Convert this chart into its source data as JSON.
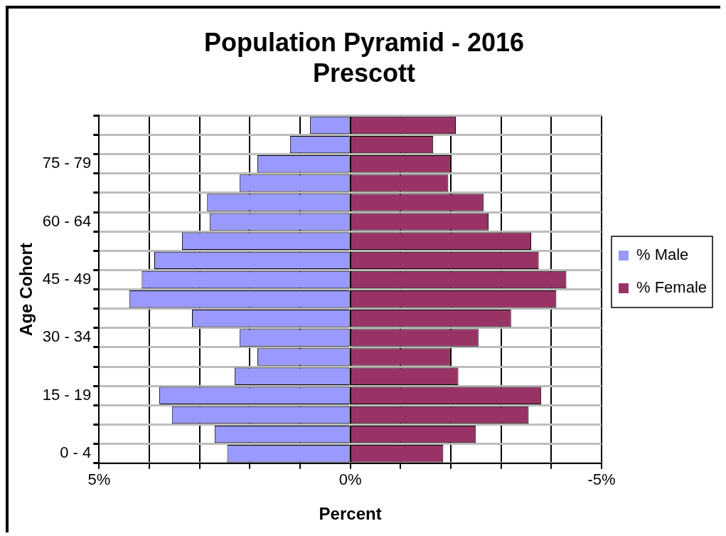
{
  "chart_data": {
    "type": "bar",
    "orientation": "horizontal",
    "stacked": true,
    "title": "Population Pyramid - 2016",
    "subtitle": "Prescott",
    "xlabel": "Percent",
    "ylabel": "Age Cohort",
    "categories": [
      null,
      null,
      "75 - 79",
      null,
      null,
      "60 - 64",
      null,
      null,
      "45 - 49",
      null,
      null,
      "30 - 34",
      null,
      null,
      "15 - 19",
      null,
      null,
      "0 - 4"
    ],
    "series": [
      {
        "name": "% Male",
        "color": "#9999ff",
        "values": [
          0.8,
          1.2,
          1.85,
          2.2,
          2.85,
          2.8,
          3.35,
          3.9,
          4.15,
          4.4,
          3.15,
          2.2,
          1.85,
          2.3,
          3.8,
          3.55,
          2.7,
          2.45
        ]
      },
      {
        "name": "% Female",
        "color": "#993366",
        "values": [
          -2.1,
          -1.65,
          -2.0,
          -1.95,
          -2.65,
          -2.75,
          -3.6,
          -3.75,
          -4.3,
          -4.1,
          -3.2,
          -2.55,
          -2.0,
          -2.15,
          -3.8,
          -3.55,
          -2.5,
          -1.85
        ]
      }
    ],
    "xlim": [
      5,
      -5
    ],
    "xticks": [
      {
        "value": 5,
        "label": "5%"
      },
      {
        "value": 4,
        "label": null
      },
      {
        "value": 3,
        "label": null
      },
      {
        "value": 2,
        "label": null
      },
      {
        "value": 1,
        "label": null
      },
      {
        "value": 0,
        "label": "0%"
      },
      {
        "value": -1,
        "label": null
      },
      {
        "value": -2,
        "label": null
      },
      {
        "value": -3,
        "label": null
      },
      {
        "value": -4,
        "label": null
      },
      {
        "value": -5,
        "label": "-5%"
      }
    ],
    "grid": true,
    "legend": "right"
  }
}
